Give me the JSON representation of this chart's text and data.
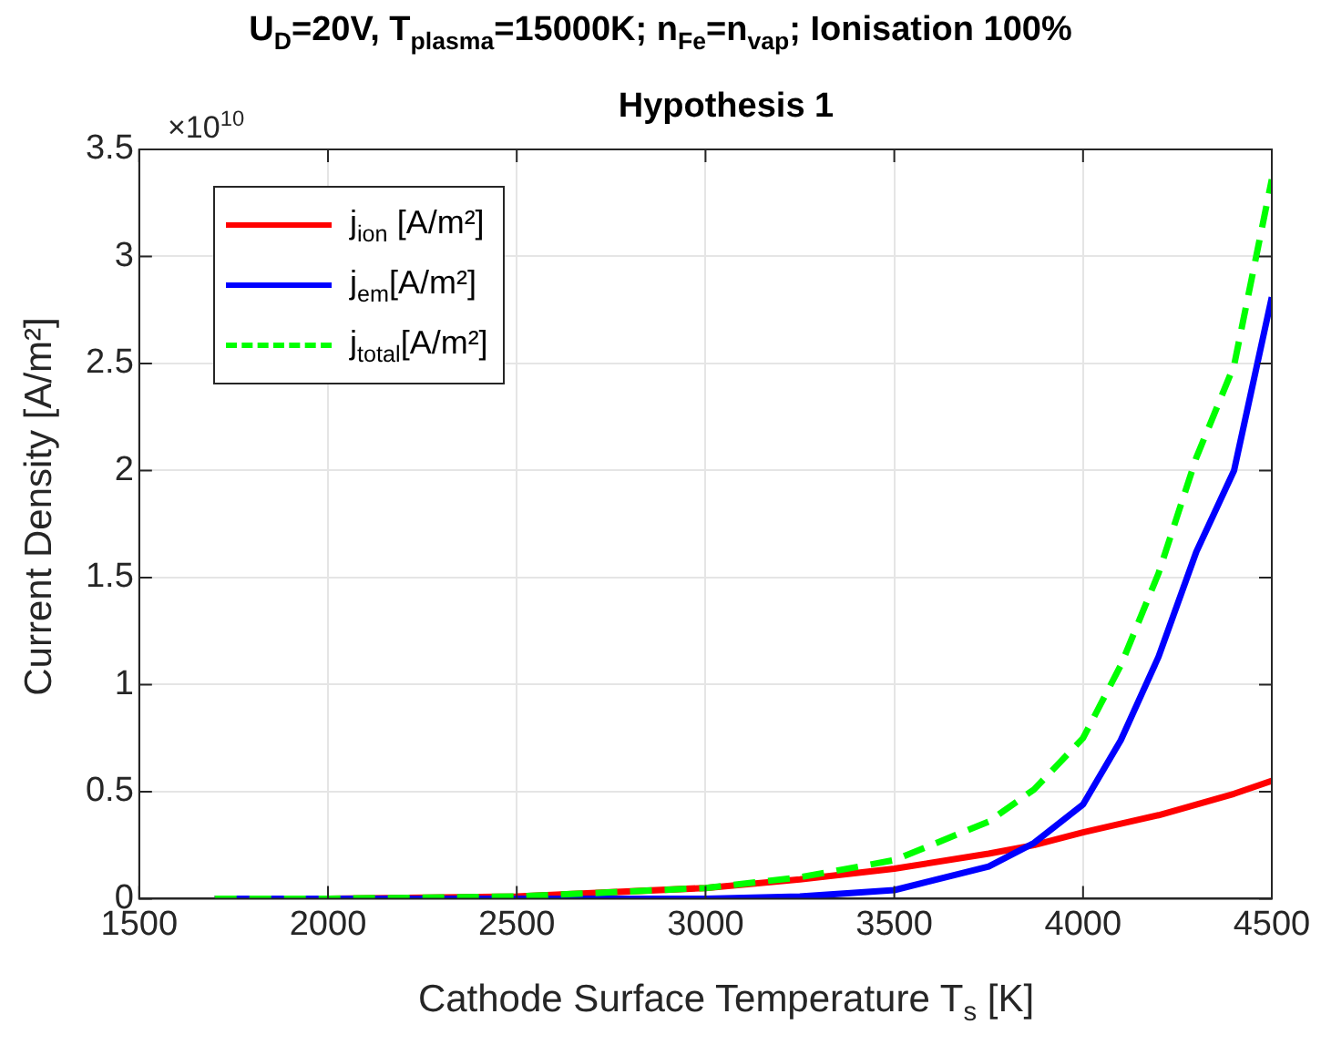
{
  "chart_data": {
    "type": "line",
    "title": "U$_{D}$=20V, T$_{plasma}$=15000K; n$_{Fe}$=n$_{vap}$; Ionisation 100%",
    "subtitle": "Hypothesis 1",
    "xlabel": "Cathode Surface Temperature T$_{s}$ [K]",
    "ylabel": "Current Density [A/m²]",
    "annotations": [
      "×10$^{10}$"
    ],
    "x": [
      1700,
      2000,
      2500,
      3000,
      3250,
      3500,
      3750,
      3870,
      4000,
      4100,
      4200,
      4300,
      4400,
      4500
    ],
    "series": [
      {
        "name": "j$_{ion}$ [A/m²]",
        "color": "#ff0000",
        "line_style": "solid",
        "values": [
          0,
          0,
          0.01,
          0.05,
          0.09,
          0.14,
          0.21,
          0.25,
          0.31,
          0.35,
          0.39,
          0.44,
          0.49,
          0.55
        ]
      },
      {
        "name": "j$_{em}$[A/m²]",
        "color": "#0000ff",
        "line_style": "solid",
        "values": [
          0,
          0,
          0,
          0,
          0.01,
          0.04,
          0.15,
          0.26,
          0.44,
          0.74,
          1.13,
          1.62,
          2.0,
          2.81
        ]
      },
      {
        "name": "j$_{total}$[A/m²]",
        "color": "#00ff00",
        "line_style": "dashed",
        "values": [
          0,
          0,
          0.01,
          0.05,
          0.1,
          0.18,
          0.36,
          0.51,
          0.75,
          1.09,
          1.52,
          2.06,
          2.49,
          3.36
        ]
      }
    ],
    "xlim": [
      1500,
      4500
    ],
    "xticks": [
      1500,
      2000,
      2500,
      3000,
      3500,
      4000,
      4500
    ],
    "ylim": [
      0,
      3.5
    ],
    "yticks": [
      0,
      0.5,
      1,
      1.5,
      2,
      2.5,
      3,
      3.5
    ],
    "grid": true,
    "legend": "top left",
    "marker": "none"
  }
}
